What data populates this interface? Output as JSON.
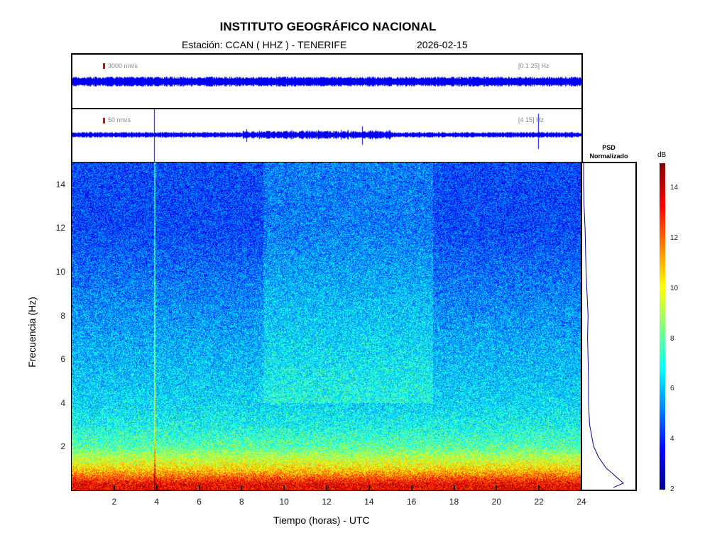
{
  "header": {
    "title": "INSTITUTO GEOGRÁFICO NACIONAL",
    "station": "Estación:  CCAN ( HHZ ) - TENERIFE",
    "date": "2026-02-15"
  },
  "traces": [
    {
      "scale": "3000 nm/s",
      "band": "[0.1 25] Hz"
    },
    {
      "scale": "50 nm/s",
      "band": "[4 15] Hz"
    }
  ],
  "psd": {
    "title1": "PSD",
    "title2": "Normalizado"
  },
  "colorbar": {
    "label": "dB",
    "ticks": [
      "2",
      "4",
      "6",
      "8",
      "10",
      "12",
      "14"
    ],
    "range": [
      2,
      15
    ]
  },
  "chart_data": {
    "type": "heatmap",
    "title": "INSTITUTO GEOGRÁFICO NACIONAL",
    "xlabel": "Tiempo (horas) - UTC",
    "ylabel": "Frecuencia  (Hz)",
    "xlim": [
      0,
      24
    ],
    "ylim": [
      0,
      15
    ],
    "xticks": [
      "2",
      "4",
      "6",
      "8",
      "10",
      "12",
      "14",
      "16",
      "18",
      "20",
      "22",
      "24"
    ],
    "yticks": [
      "2",
      "4",
      "6",
      "8",
      "10",
      "12",
      "14"
    ],
    "band_levels_db": {
      "freq_hz": [
        0.3,
        1,
        2,
        3,
        4,
        6,
        8,
        10,
        12,
        14
      ],
      "db": [
        13.5,
        10.5,
        8,
        7,
        6.5,
        6,
        5.5,
        5,
        4.5,
        4.5
      ]
    },
    "psd_curve": {
      "freq_hz": [
        0.1,
        0.3,
        0.5,
        1,
        1.5,
        2,
        3,
        4,
        5,
        6,
        7,
        8,
        9,
        10,
        11,
        12,
        13,
        14,
        15
      ],
      "normalized": [
        0.6,
        0.8,
        0.7,
        0.45,
        0.3,
        0.2,
        0.12,
        0.1,
        0.1,
        0.09,
        0.08,
        0.09,
        0.07,
        0.05,
        0.04,
        0.03,
        0.01,
        0,
        0
      ]
    }
  }
}
